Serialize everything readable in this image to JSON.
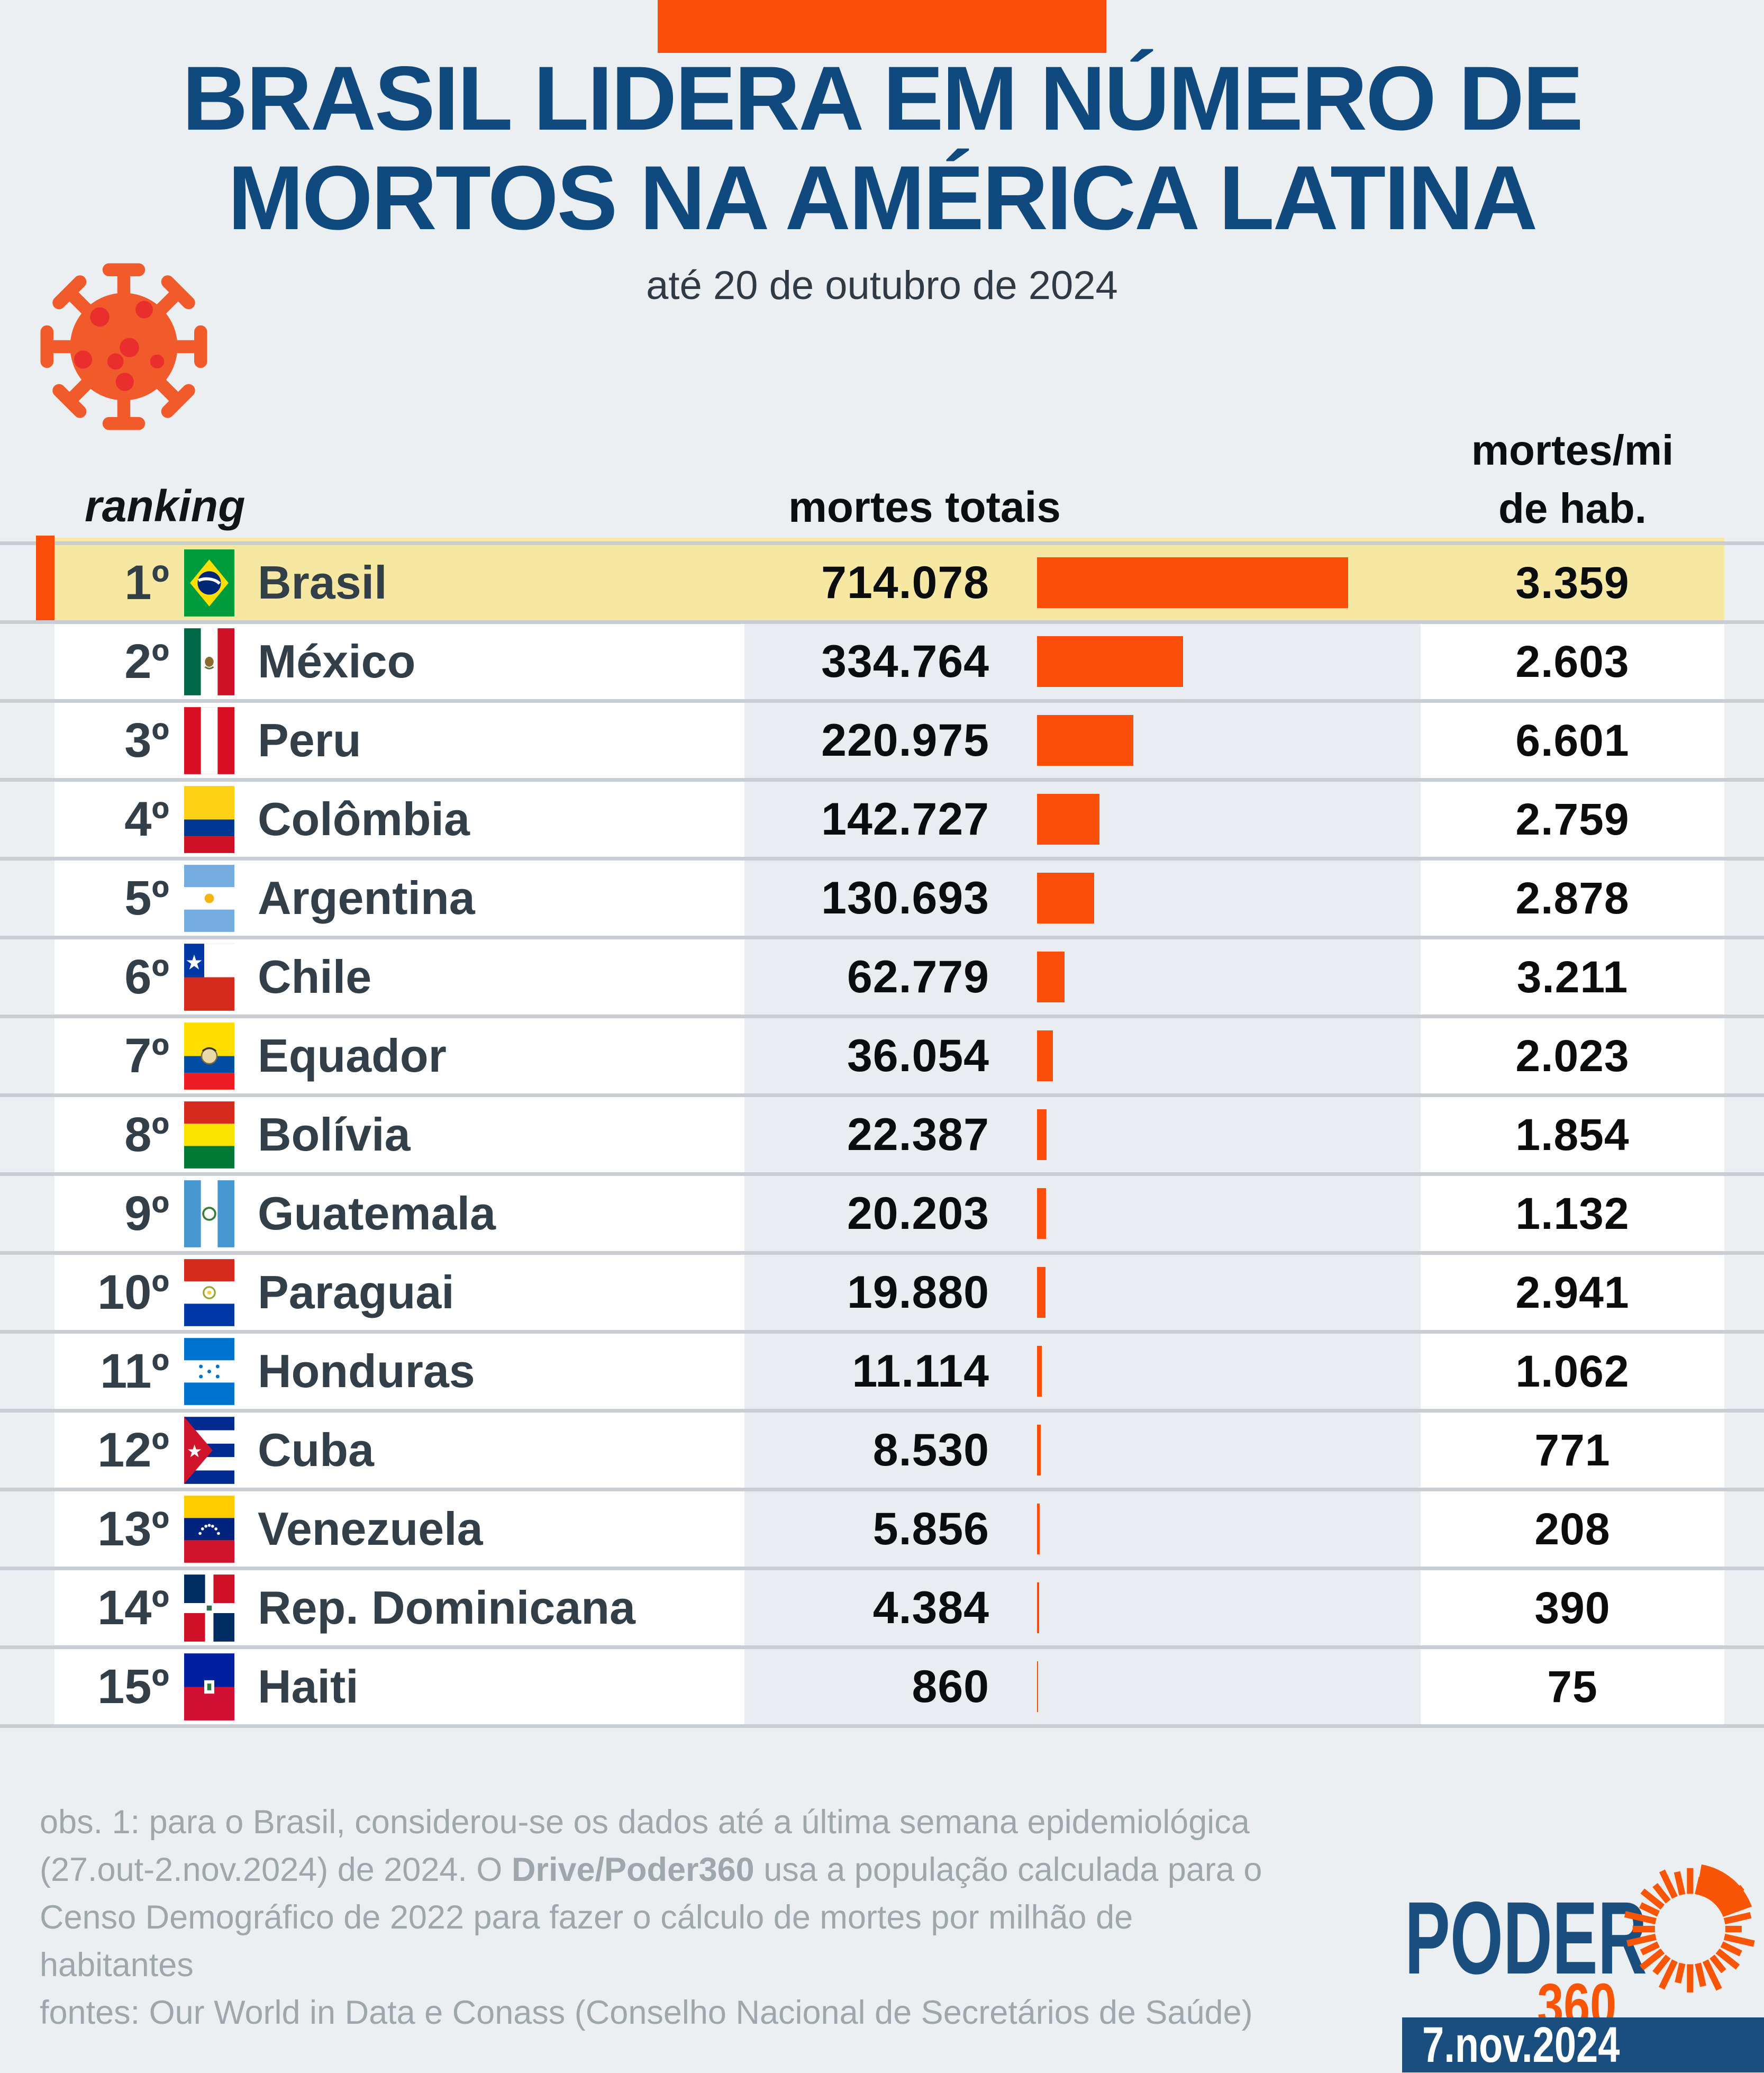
{
  "colors": {
    "background": "#ECEFF2",
    "accent_orange": "#FB4E0A",
    "logo_orange": "#F85507",
    "virus_orange": "#F15B2C",
    "virus_red": "#EA2D2D",
    "title_navy": "#0F497E",
    "logo_navy": "#1A4E7E",
    "highlight_yellow": "#F6E8A3",
    "row_white": "#FFFFFF",
    "bars_cell_bg": "#E9EDF1",
    "separator": "#C8CED3",
    "footer_gray": "#9EA7AB",
    "text_dark": "#323E48"
  },
  "header": {
    "title_line1": "BRASIL LIDERA EM NÚMERO DE",
    "title_line2": "MORTOS NA AMÉRICA LATINA",
    "subtitle": "até 20 de outubro de 2024",
    "virus_icon": "coronavirus-icon"
  },
  "table_headers": {
    "ranking": "ranking",
    "deaths": "mortes totais",
    "rate_line1": "mortes/mi",
    "rate_line2": "de hab."
  },
  "rows": [
    {
      "rank": "1º",
      "country": "Brasil",
      "flag": "brasil",
      "deaths": "714.078",
      "deaths_value": 714078,
      "rate": "3.359",
      "highlight": true
    },
    {
      "rank": "2º",
      "country": "México",
      "flag": "mexico",
      "deaths": "334.764",
      "deaths_value": 334764,
      "rate": "2.603",
      "highlight": false
    },
    {
      "rank": "3º",
      "country": "Peru",
      "flag": "peru",
      "deaths": "220.975",
      "deaths_value": 220975,
      "rate": "6.601",
      "highlight": false
    },
    {
      "rank": "4º",
      "country": "Colômbia",
      "flag": "colombia",
      "deaths": "142.727",
      "deaths_value": 142727,
      "rate": "2.759",
      "highlight": false
    },
    {
      "rank": "5º",
      "country": "Argentina",
      "flag": "argentina",
      "deaths": "130.693",
      "deaths_value": 130693,
      "rate": "2.878",
      "highlight": false
    },
    {
      "rank": "6º",
      "country": "Chile",
      "flag": "chile",
      "deaths": "62.779",
      "deaths_value": 62779,
      "rate": "3.211",
      "highlight": false
    },
    {
      "rank": "7º",
      "country": "Equador",
      "flag": "equador",
      "deaths": "36.054",
      "deaths_value": 36054,
      "rate": "2.023",
      "highlight": false
    },
    {
      "rank": "8º",
      "country": "Bolívia",
      "flag": "bolivia",
      "deaths": "22.387",
      "deaths_value": 22387,
      "rate": "1.854",
      "highlight": false
    },
    {
      "rank": "9º",
      "country": "Guatemala",
      "flag": "guatemala",
      "deaths": "20.203",
      "deaths_value": 20203,
      "rate": "1.132",
      "highlight": false
    },
    {
      "rank": "10º",
      "country": "Paraguai",
      "flag": "paraguai",
      "deaths": "19.880",
      "deaths_value": 19880,
      "rate": "2.941",
      "highlight": false
    },
    {
      "rank": "11º",
      "country": "Honduras",
      "flag": "honduras",
      "deaths": "11.114",
      "deaths_value": 11114,
      "rate": "1.062",
      "highlight": false
    },
    {
      "rank": "12º",
      "country": "Cuba",
      "flag": "cuba",
      "deaths": "8.530",
      "deaths_value": 8530,
      "rate": "771",
      "highlight": false
    },
    {
      "rank": "13º",
      "country": "Venezuela",
      "flag": "venezuela",
      "deaths": "5.856",
      "deaths_value": 5856,
      "rate": "208",
      "highlight": false
    },
    {
      "rank": "14º",
      "country": "Rep. Dominicana",
      "flag": "dominicana",
      "deaths": "4.384",
      "deaths_value": 4384,
      "rate": "390",
      "highlight": false
    },
    {
      "rank": "15º",
      "country": "Haiti",
      "flag": "haiti",
      "deaths": "860",
      "deaths_value": 860,
      "rate": "75",
      "highlight": false
    }
  ],
  "chart_data": {
    "type": "bar",
    "orientation": "horizontal",
    "title": "BRASIL LIDERA EM NÚMERO DE MORTOS NA AMÉRICA LATINA",
    "subtitle": "até 20 de outubro de 2024",
    "categories": [
      "Brasil",
      "México",
      "Peru",
      "Colômbia",
      "Argentina",
      "Chile",
      "Equador",
      "Bolívia",
      "Guatemala",
      "Paraguai",
      "Honduras",
      "Cuba",
      "Venezuela",
      "Rep. Dominicana",
      "Haiti"
    ],
    "series": [
      {
        "name": "mortes totais",
        "values": [
          714078,
          334764,
          220975,
          142727,
          130693,
          62779,
          36054,
          22387,
          20203,
          19880,
          11114,
          8530,
          5856,
          4384,
          860
        ]
      },
      {
        "name": "mortes/mi de hab.",
        "values": [
          3359,
          2603,
          6601,
          2759,
          2878,
          3211,
          2023,
          1854,
          1132,
          2941,
          1062,
          771,
          208,
          390,
          75
        ]
      }
    ],
    "xlim": [
      0,
      714078
    ],
    "bar_color": "#FB4E0A",
    "highlight_category": "Brasil",
    "grid": false,
    "legend_position": "none"
  },
  "footer": {
    "lines": [
      [
        {
          "t": "obs. 1: para o Brasil, considerou-se os dados até a última semana epidemiológica"
        }
      ],
      [
        {
          "t": "(27.out-2.nov.2024) de 2024. O "
        },
        {
          "t": "Drive/Poder360",
          "b": true
        },
        {
          "t": " usa a população calculada para o"
        }
      ],
      [
        {
          "t": "Censo Demográfico de 2022 para fazer o cálculo de mortes por milhão de"
        }
      ],
      [
        {
          "t": "habitantes"
        }
      ],
      [
        {
          "t": "fontes: Our World in Data e Conass (Conselho Nacional de Secretários de Saúde)"
        }
      ]
    ]
  },
  "logo": {
    "name": "PODER",
    "suffix": "360",
    "icon": "poder360-sunburst-icon"
  },
  "datebox": {
    "date": "7.nov.2024"
  }
}
